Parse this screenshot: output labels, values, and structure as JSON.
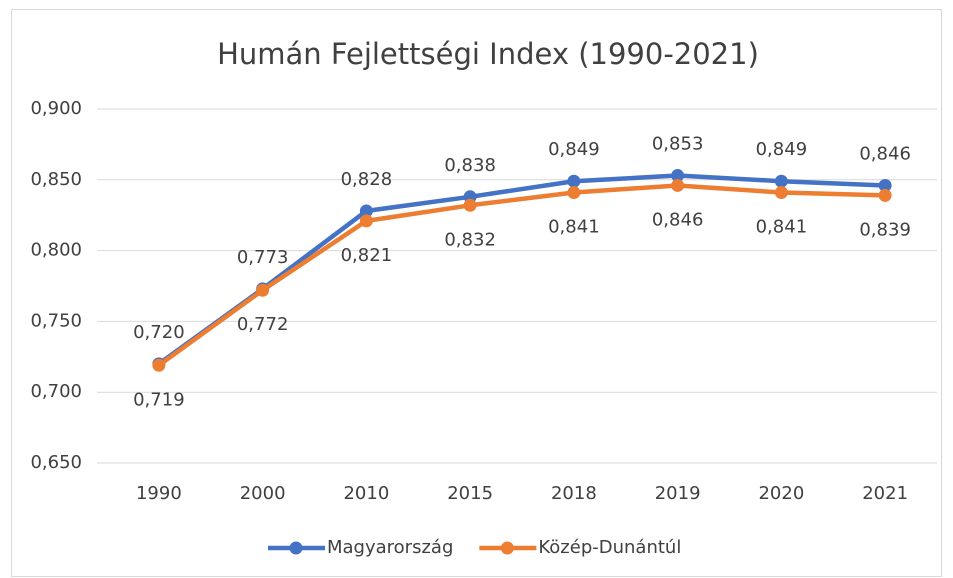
{
  "chart_data": {
    "type": "line",
    "title": "Humán Fejlettségi Index (1990-2021)",
    "categories": [
      "1990",
      "2000",
      "2010",
      "2015",
      "2018",
      "2019",
      "2020",
      "2021"
    ],
    "series": [
      {
        "name": "Magyarország",
        "color": "#4472c4",
        "values": [
          0.72,
          0.773,
          0.828,
          0.838,
          0.849,
          0.853,
          0.849,
          0.846
        ],
        "value_labels": [
          "0,720",
          "0,773",
          "0,828",
          "0,838",
          "0,849",
          "0,853",
          "0,849",
          "0,846"
        ]
      },
      {
        "name": "Közép-Dunántúl",
        "color": "#ed7d31",
        "values": [
          0.719,
          0.772,
          0.821,
          0.832,
          0.841,
          0.846,
          0.841,
          0.839
        ],
        "value_labels": [
          "0,719",
          "0,772",
          "0,821",
          "0,832",
          "0,841",
          "0,846",
          "0,841",
          "0,839"
        ]
      }
    ],
    "ylim": [
      0.65,
      0.9
    ],
    "yticks": [
      {
        "value": 0.65,
        "label": "0,650"
      },
      {
        "value": 0.7,
        "label": "0,700"
      },
      {
        "value": 0.75,
        "label": "0,750"
      },
      {
        "value": 0.8,
        "label": "0,800"
      },
      {
        "value": 0.85,
        "label": "0,850"
      },
      {
        "value": 0.9,
        "label": "0,900"
      }
    ],
    "grid": true,
    "legend": "bottom"
  }
}
